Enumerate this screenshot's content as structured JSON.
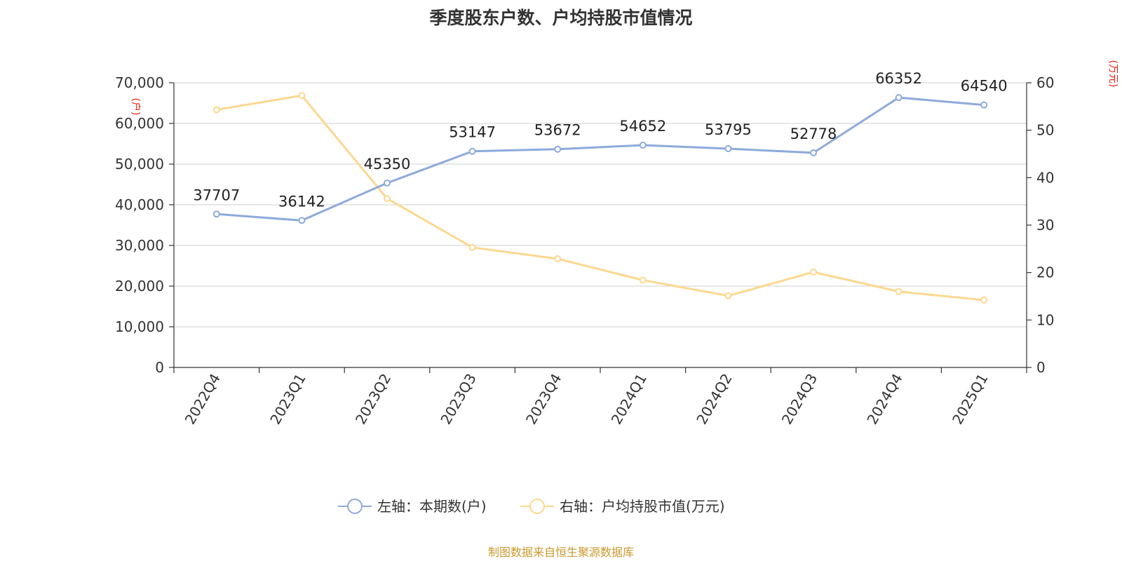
{
  "title": "季度股东户数、户均持股市值情况",
  "source": "制图数据来自恒生聚源数据库",
  "left_axis_unit": "(户)",
  "right_axis_unit": "(万元)",
  "chart_data": {
    "type": "line",
    "categories": [
      "2022Q4",
      "2023Q1",
      "2023Q2",
      "2023Q3",
      "2023Q4",
      "2024Q1",
      "2024Q2",
      "2024Q3",
      "2024Q4",
      "2025Q1"
    ],
    "series": [
      {
        "name": "左轴：本期数(户)",
        "axis": "left",
        "color": "#8eaadb",
        "values": [
          37707,
          36142,
          45350,
          53147,
          53672,
          54652,
          53795,
          52778,
          66352,
          64540
        ],
        "data_labels": [
          "37707",
          "36142",
          "45350",
          "53147",
          "53672",
          "54652",
          "53795",
          "52778",
          "66352",
          "64540"
        ]
      },
      {
        "name": "右轴：户均持股市值(万元)",
        "axis": "right",
        "color": "#fcd88f",
        "values": [
          54.3,
          57.3,
          35.6,
          25.3,
          22.9,
          18.4,
          15.1,
          20.1,
          16.0,
          14.2
        ]
      }
    ],
    "left_axis": {
      "min": 0,
      "max": 70000,
      "ticks": [
        "0",
        "10,000",
        "20,000",
        "30,000",
        "40,000",
        "50,000",
        "60,000",
        "70,000"
      ]
    },
    "right_axis": {
      "min": 0,
      "max": 60,
      "ticks": [
        "0",
        "10",
        "20",
        "30",
        "40",
        "50",
        "60"
      ]
    },
    "grid": true,
    "legend_position": "bottom"
  }
}
